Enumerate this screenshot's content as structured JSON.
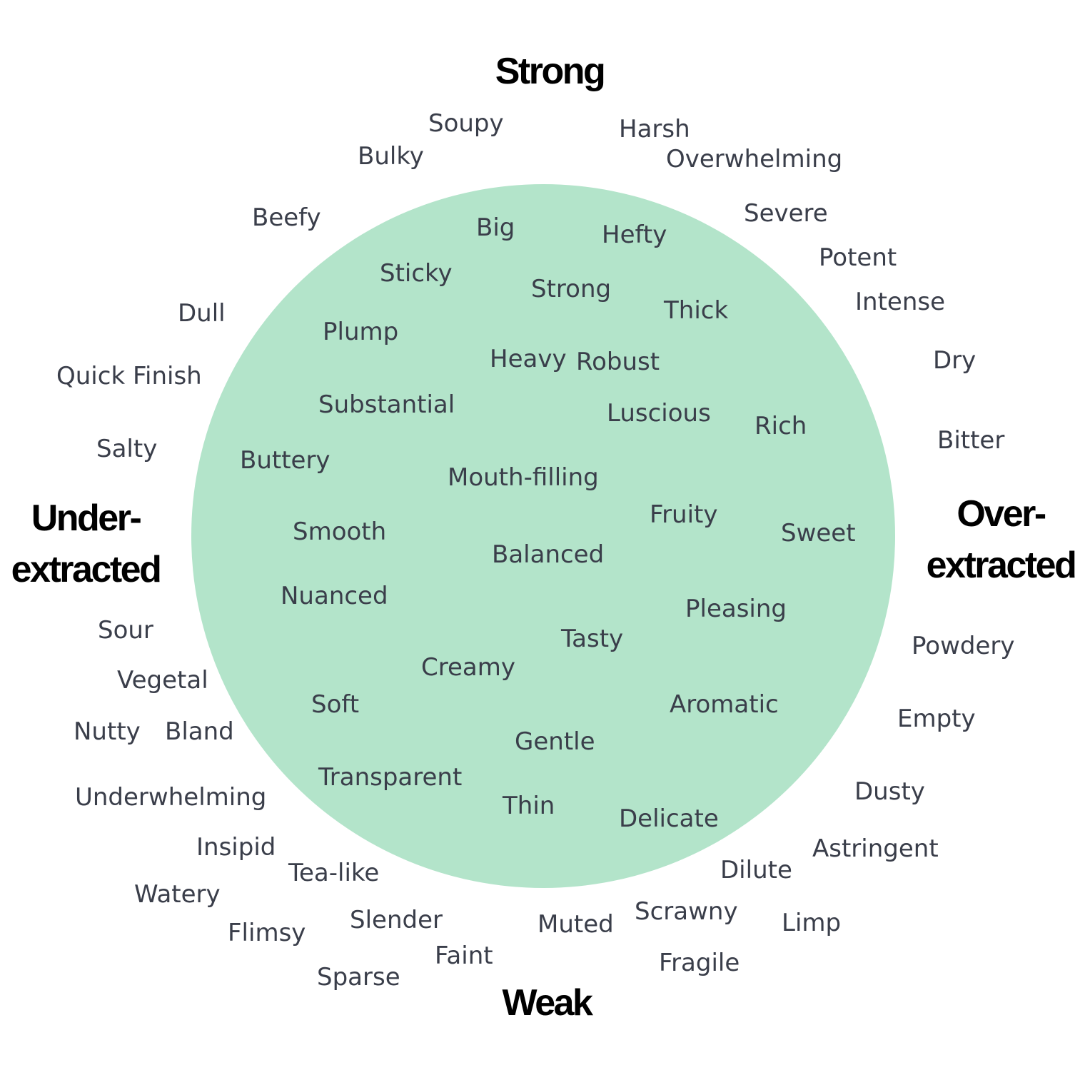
{
  "colors": {
    "background": "#ffffff",
    "circle_fill": "#b3e4ca",
    "word_text": "#3a3e4a",
    "axis_text": "#000000"
  },
  "axes": {
    "top": "Strong",
    "bottom": "Weak",
    "left": [
      "Under-",
      "extracted"
    ],
    "right": [
      "Over-",
      "extracted"
    ]
  },
  "inside_words": [
    "Big",
    "Hefty",
    "Sticky",
    "Strong",
    "Thick",
    "Plump",
    "Heavy",
    "Robust",
    "Substantial",
    "Luscious",
    "Rich",
    "Buttery",
    "Mouth-filling",
    "Fruity",
    "Smooth",
    "Sweet",
    "Balanced",
    "Nuanced",
    "Pleasing",
    "Tasty",
    "Creamy",
    "Soft",
    "Aromatic",
    "Gentle",
    "Transparent",
    "Thin",
    "Delicate"
  ],
  "outside_words": [
    "Soupy",
    "Harsh",
    "Bulky",
    "Overwhelming",
    "Severe",
    "Beefy",
    "Potent",
    "Intense",
    "Dull",
    "Dry",
    "Quick Finish",
    "Bitter",
    "Salty",
    "Sour",
    "Powdery",
    "Vegetal",
    "Empty",
    "Nutty",
    "Bland",
    "Underwhelming",
    "Dusty",
    "Insipid",
    "Astringent",
    "Tea-like",
    "Dilute",
    "Watery",
    "Flimsy",
    "Slender",
    "Muted",
    "Scrawny",
    "Limp",
    "Faint",
    "Fragile",
    "Sparse"
  ]
}
